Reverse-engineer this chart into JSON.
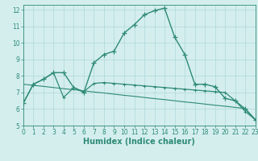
{
  "line1": {
    "x": [
      0,
      1,
      2,
      3,
      4,
      5,
      6,
      7,
      8,
      9,
      10,
      11,
      12,
      13,
      14,
      15,
      16,
      17,
      18,
      19,
      20,
      21,
      22,
      23
    ],
    "y": [
      6.35,
      7.5,
      7.8,
      8.2,
      8.2,
      7.3,
      7.0,
      8.8,
      9.3,
      9.5,
      10.6,
      11.1,
      11.7,
      11.95,
      12.1,
      10.35,
      9.3,
      7.5,
      7.5,
      7.35,
      6.65,
      6.5,
      6.0,
      5.35
    ],
    "color": "#2e8b74",
    "linewidth": 1.0,
    "marker": "+",
    "markersize": 4
  },
  "line2": {
    "x": [
      0,
      1,
      2,
      3,
      4,
      5,
      6,
      7,
      8,
      9,
      10,
      11,
      12,
      13,
      14,
      15,
      16,
      17,
      18,
      19,
      20,
      21,
      22,
      23
    ],
    "y": [
      6.35,
      7.5,
      7.8,
      8.2,
      6.7,
      7.3,
      7.05,
      7.55,
      7.6,
      7.55,
      7.5,
      7.45,
      7.4,
      7.35,
      7.3,
      7.25,
      7.2,
      7.15,
      7.1,
      7.05,
      7.0,
      6.5,
      5.85,
      5.35
    ],
    "color": "#2e8b74",
    "linewidth": 0.9,
    "marker": "+",
    "markersize": 3
  },
  "line3": {
    "x": [
      0,
      1,
      2,
      3,
      4,
      5,
      6,
      7,
      8,
      9,
      10,
      11,
      12,
      13,
      14,
      15,
      16,
      17,
      18,
      19,
      20,
      21,
      22,
      23
    ],
    "y": [
      7.5,
      7.43,
      7.37,
      7.3,
      7.23,
      7.17,
      7.1,
      7.03,
      6.97,
      6.9,
      6.83,
      6.77,
      6.7,
      6.63,
      6.57,
      6.5,
      6.43,
      6.37,
      6.3,
      6.23,
      6.17,
      6.1,
      6.03,
      5.35
    ],
    "color": "#2e8b74",
    "linewidth": 0.8,
    "marker": null
  },
  "xlim": [
    0,
    23
  ],
  "ylim": [
    5,
    12.3
  ],
  "yticks": [
    5,
    6,
    7,
    8,
    9,
    10,
    11,
    12
  ],
  "xticks": [
    0,
    1,
    2,
    3,
    4,
    5,
    6,
    7,
    8,
    9,
    10,
    11,
    12,
    13,
    14,
    15,
    16,
    17,
    18,
    19,
    20,
    21,
    22,
    23
  ],
  "xlabel": "Humidex (Indice chaleur)",
  "background_color": "#d4eeee",
  "grid_color": "#b0d8d8",
  "axis_color": "#2e8b74",
  "tick_color": "#2e8b74",
  "label_color": "#2e8b74",
  "tick_fontsize": 5.5,
  "xlabel_fontsize": 7.0
}
